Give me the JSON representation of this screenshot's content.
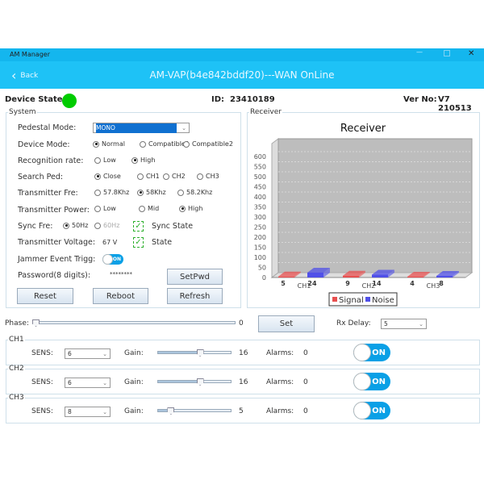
{
  "window": {
    "title": "AM Manager",
    "controls": [
      "minimize-icon",
      "maximize-icon",
      "close-icon"
    ]
  },
  "header": {
    "back_label": "Back",
    "title": "AM-VAP(b4e842bddf20)---WAN OnLine"
  },
  "status": {
    "device_state_label": "Device State:",
    "device_state_color": "#00cc00",
    "id_label": "ID:",
    "id_value": "23410189",
    "ver_label": "Ver No:",
    "ver_value": "V7 210513"
  },
  "system": {
    "legend": "System",
    "pedestal_mode": {
      "label": "Pedestal Mode:",
      "value": "MONO"
    },
    "device_mode": {
      "label": "Device Mode:",
      "options": [
        "Normal",
        "Compatible1",
        "Compatible2"
      ],
      "selected": 0
    },
    "recognition_rate": {
      "label": "Recognition rate:",
      "options": [
        "Low",
        "High"
      ],
      "selected": 1
    },
    "search_ped": {
      "label": "Search Ped:",
      "options": [
        "Close",
        "CH1",
        "CH2",
        "CH3"
      ],
      "selected": 0
    },
    "transmitter_fre": {
      "label": "Transmitter Fre:",
      "options": [
        "57.8Khz",
        "58Khz",
        "58.2Khz"
      ],
      "selected": 1
    },
    "transmitter_power": {
      "label": "Transmitter Power:",
      "options": [
        "Low",
        "Mid",
        "High"
      ],
      "selected": 2
    },
    "sync_fre": {
      "label": "Sync Fre:",
      "options": [
        "50Hz",
        "60Hz"
      ],
      "selected": 0,
      "sync_state_label": "Sync State",
      "sync_state_checked": true
    },
    "transmitter_voltage": {
      "label": "Transmitter Voltage:",
      "value": "67 V",
      "state_label": "State",
      "state_checked": true
    },
    "jammer": {
      "label": "Jammer Event Trigg:",
      "toggle": "ON"
    },
    "password": {
      "label": "Password(8 digits):",
      "value": "********"
    },
    "buttons": {
      "setpwd": "SetPwd",
      "reset": "Reset",
      "reboot": "Reboot",
      "refresh": "Refresh"
    }
  },
  "receiver": {
    "legend": "Receiver"
  },
  "chart_data": {
    "type": "bar",
    "title": "Receiver",
    "categories": [
      "CH1",
      "CH2",
      "CH3"
    ],
    "series": [
      {
        "name": "Signal",
        "values": [
          5,
          9,
          4
        ],
        "color": "#e85050"
      },
      {
        "name": "Noise",
        "values": [
          24,
          14,
          8
        ],
        "color": "#5050e8"
      }
    ],
    "ylim": [
      0,
      600
    ],
    "yticks": [
      0,
      50,
      100,
      150,
      200,
      250,
      300,
      350,
      400,
      450,
      500,
      550,
      600
    ],
    "grid": true,
    "legend": "bottom",
    "style": "3d"
  },
  "phase": {
    "label": "Phase:",
    "value": "0",
    "set_label": "Set",
    "rx_delay_label": "Rx Delay:",
    "rx_delay_value": "5"
  },
  "channels": [
    {
      "name": "CH1",
      "sens_label": "SENS:",
      "sens": "6",
      "gain_label": "Gain:",
      "gain": "16",
      "alarms_label": "Alarms:",
      "alarms": "0",
      "toggle": "ON"
    },
    {
      "name": "CH2",
      "sens_label": "SENS:",
      "sens": "6",
      "gain_label": "Gain:",
      "gain": "16",
      "alarms_label": "Alarms:",
      "alarms": "0",
      "toggle": "ON"
    },
    {
      "name": "CH3",
      "sens_label": "SENS:",
      "sens": "8",
      "gain_label": "Gain:",
      "gain": "5",
      "alarms_label": "Alarms:",
      "alarms": "0",
      "toggle": "ON"
    }
  ]
}
